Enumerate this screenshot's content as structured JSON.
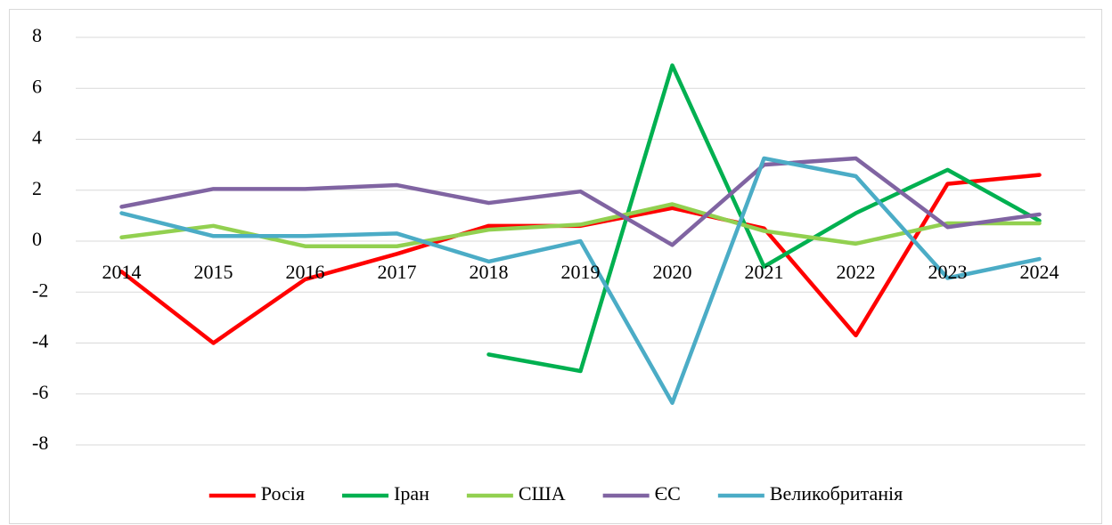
{
  "chart_data": {
    "type": "line",
    "categories": [
      "2014",
      "2015",
      "2016",
      "2017",
      "2018",
      "2019",
      "2020",
      "2021",
      "2022",
      "2023",
      "2024"
    ],
    "series": [
      {
        "name": "Росія",
        "color": "#ff0000",
        "values": [
          -1.2,
          -4.0,
          -1.5,
          -0.5,
          0.6,
          0.6,
          1.3,
          0.5,
          -3.7,
          2.25,
          2.6
        ]
      },
      {
        "name": "Іран",
        "color": "#00b050",
        "values": [
          null,
          null,
          null,
          null,
          -4.45,
          -5.1,
          6.9,
          -1.0,
          1.1,
          2.8,
          0.8
        ]
      },
      {
        "name": "США",
        "color": "#92d050",
        "values": [
          0.15,
          0.6,
          -0.2,
          -0.2,
          0.45,
          0.65,
          1.45,
          0.4,
          -0.1,
          0.7,
          0.7
        ]
      },
      {
        "name": "ЄС",
        "color": "#8064a2",
        "values": [
          1.35,
          2.05,
          2.05,
          2.2,
          1.5,
          1.95,
          -0.15,
          3.0,
          3.25,
          0.55,
          1.05
        ]
      },
      {
        "name": "Великобританія",
        "color": "#4bacc6",
        "values": [
          1.1,
          0.2,
          0.2,
          0.3,
          -0.8,
          0.0,
          -6.35,
          3.25,
          2.55,
          -1.45,
          -0.7
        ]
      }
    ],
    "ylim": [
      -8,
      8
    ],
    "yticks": [
      -8,
      -6,
      -4,
      -2,
      0,
      2,
      4,
      6,
      8
    ],
    "grid": true,
    "legend": "bottom"
  }
}
